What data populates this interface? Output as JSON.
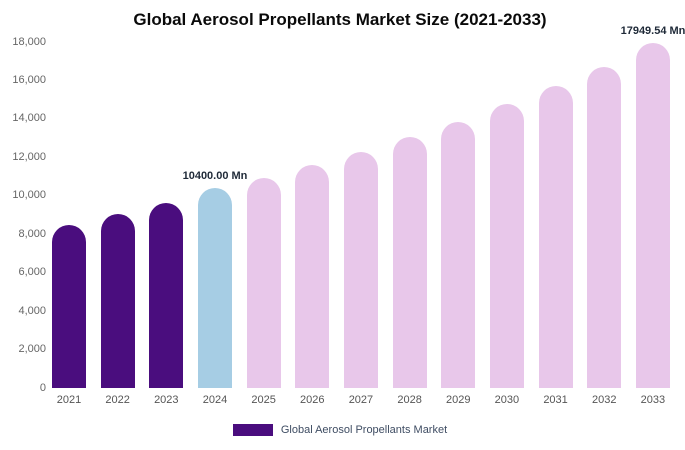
{
  "chart_data": {
    "type": "bar",
    "title": "Global Aerosol Propellants Market Size (2021-2033)",
    "categories": [
      "2021",
      "2022",
      "2023",
      "2024",
      "2025",
      "2026",
      "2027",
      "2028",
      "2029",
      "2030",
      "2031",
      "2032",
      "2033"
    ],
    "values": [
      8500,
      9050,
      9650,
      10400,
      10900,
      11600,
      12300,
      13050,
      13850,
      14750,
      15700,
      16700,
      17949.54
    ],
    "colors": [
      "#4A0D7E",
      "#4A0D7E",
      "#4A0D7E",
      "#A6CDE4",
      "#E8C7EA",
      "#E8C7EA",
      "#E8C7EA",
      "#E8C7EA",
      "#E8C7EA",
      "#E8C7EA",
      "#E8C7EA",
      "#E8C7EA",
      "#E8C7EA"
    ],
    "ylim": [
      0,
      18000
    ],
    "ytick_step": 2000,
    "grid": false,
    "xlabel": "",
    "ylabel": "",
    "legend": {
      "label": "Global Aerosol Propellants Market",
      "position": "bottom",
      "swatch_color": "#4A0D7E"
    },
    "annotations": [
      {
        "index": 3,
        "text": "10400.00 Mn"
      },
      {
        "index": 12,
        "text": "17949.54 Mn"
      }
    ]
  }
}
